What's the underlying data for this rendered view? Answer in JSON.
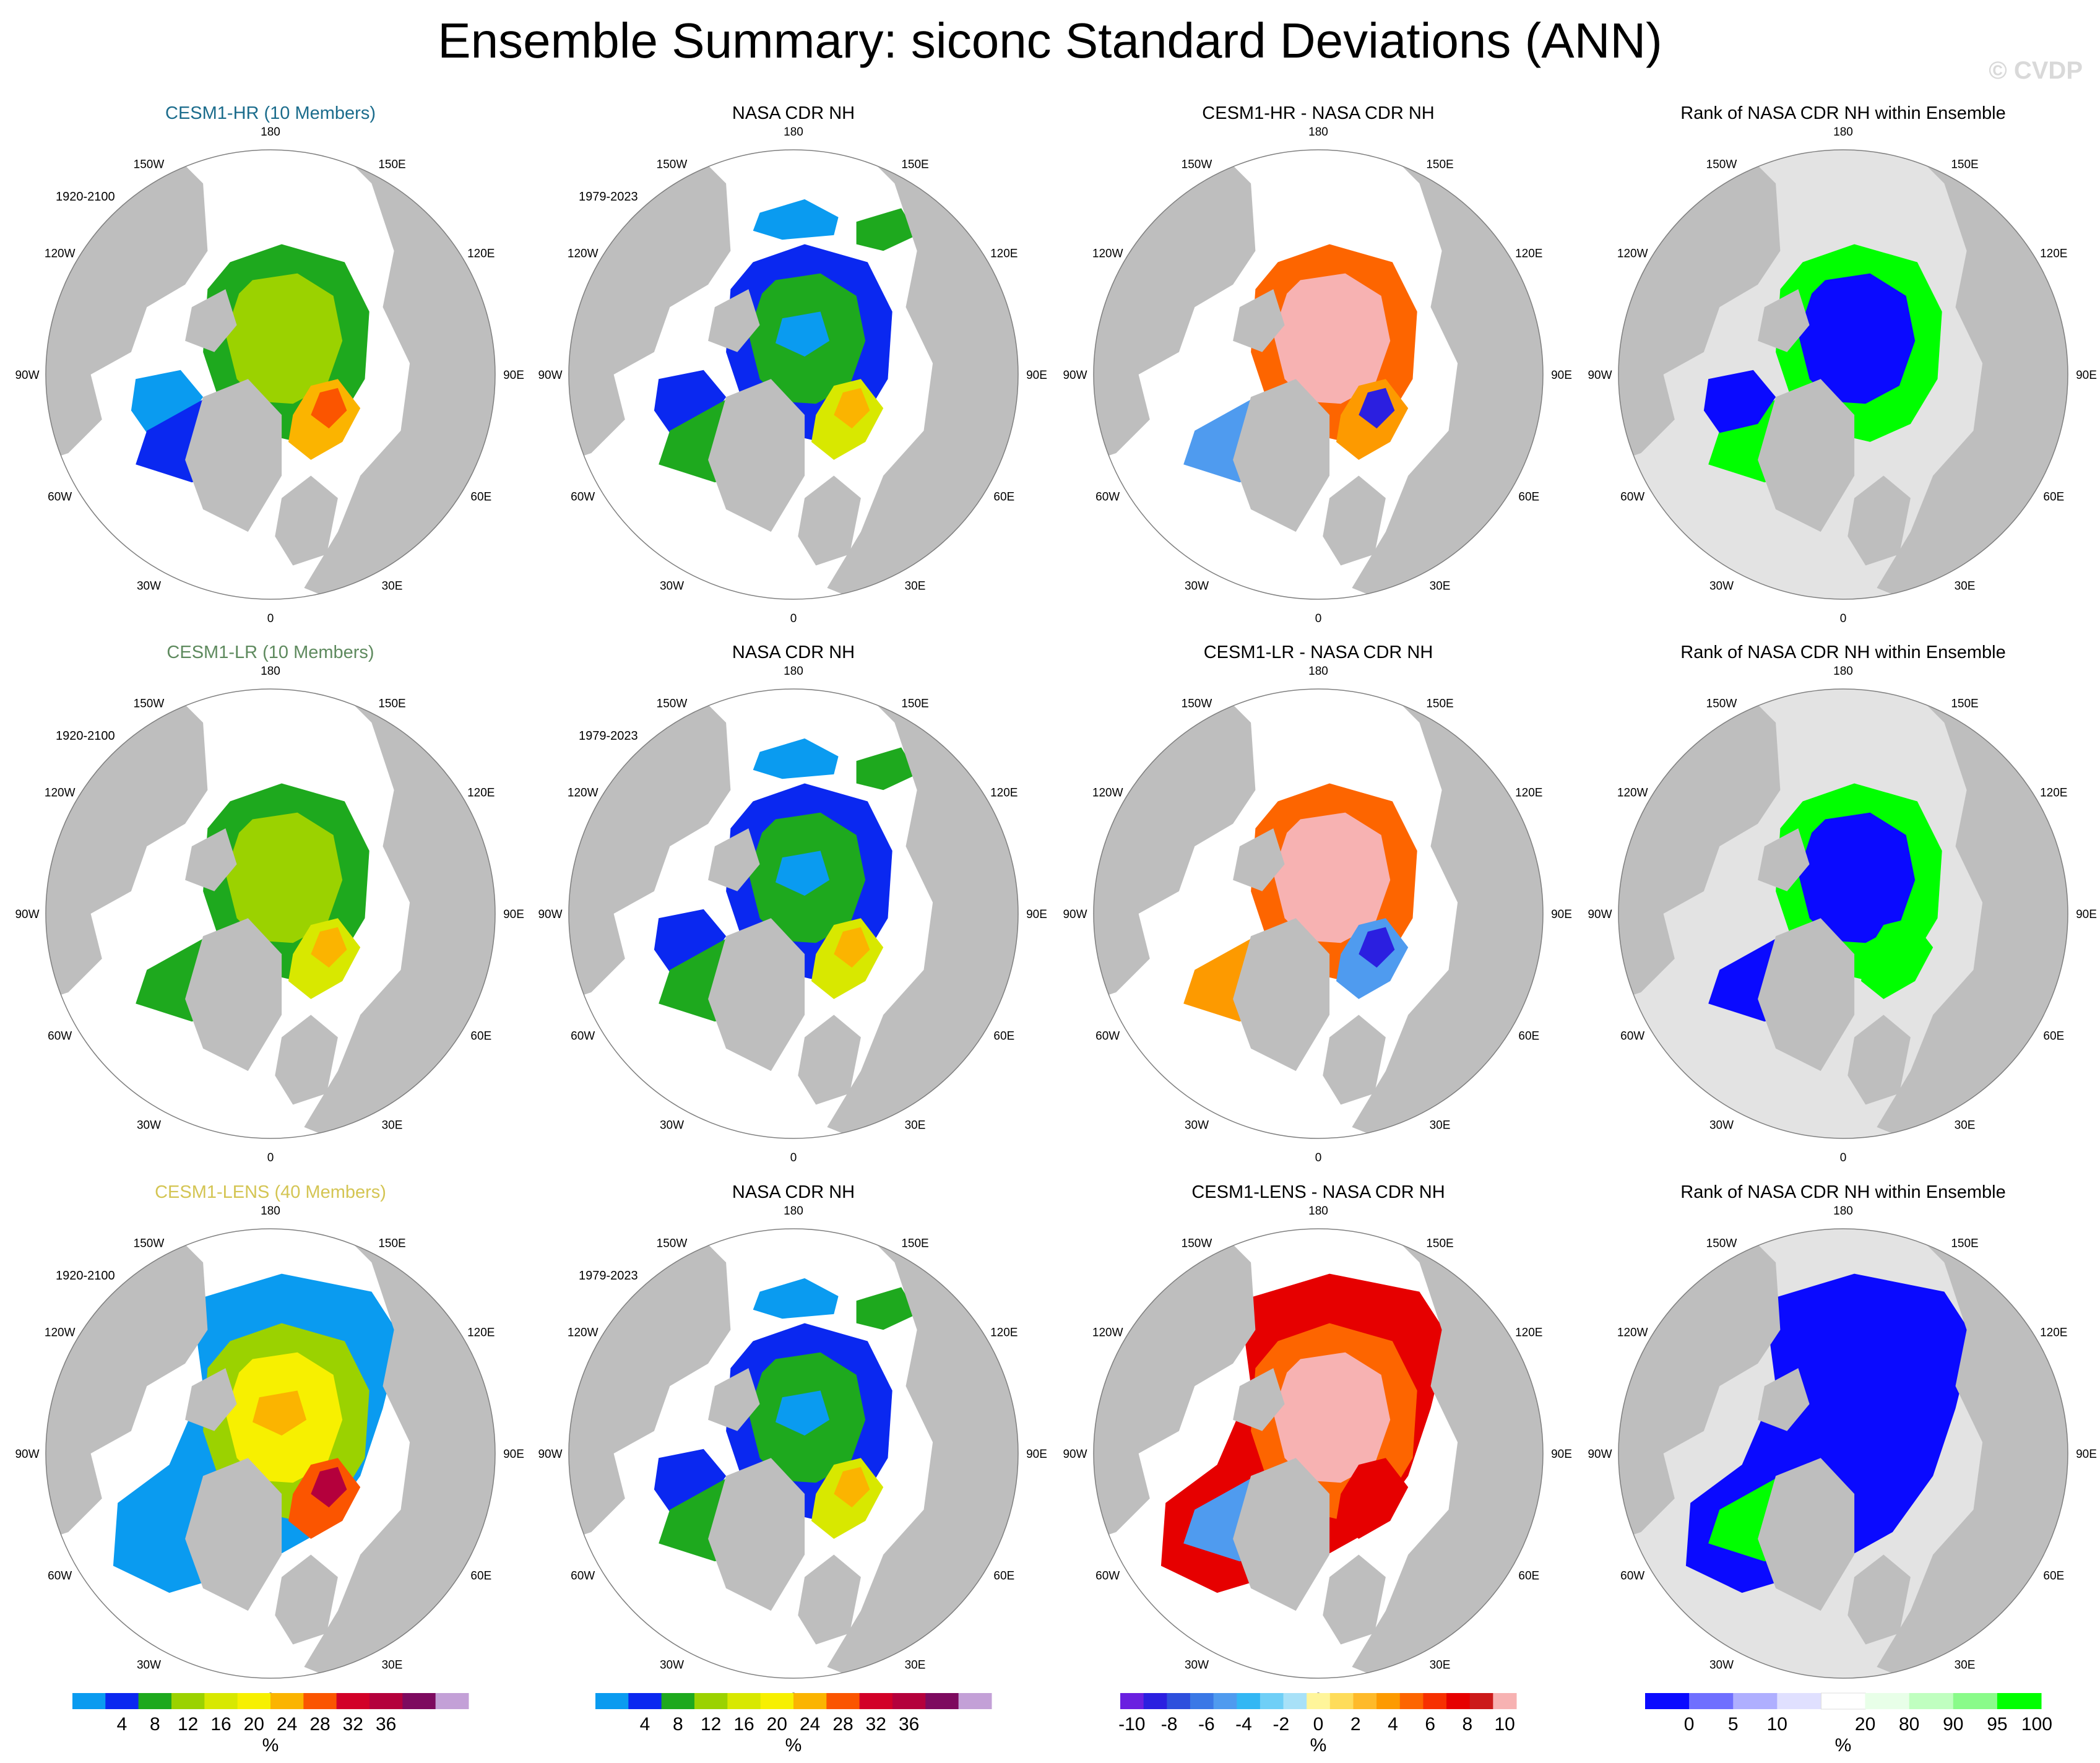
{
  "title": "Ensemble Summary: siconc Standard Deviations (ANN)",
  "watermark": "© CVDP",
  "colors": {
    "ocean": "#ffffff",
    "land": "#bebebe",
    "rank_background": "#e3e3e3",
    "circle_outline": "#7f7f7f",
    "title_hr": "#1b6c8c",
    "title_lr": "#5e8a5e",
    "title_lens": "#d4c553"
  },
  "longitude_labels": [
    "180",
    "150E",
    "120E",
    "90E",
    "60E",
    "30E",
    "0",
    "30W",
    "60W",
    "90W",
    "120W",
    "150W"
  ],
  "rows": [
    {
      "panels": [
        {
          "title": "CESM1-HR (10 Members)",
          "title_color": "#1b6c8c",
          "period": "1920-2100",
          "field": "std_model_hr",
          "scale": "std"
        },
        {
          "title": "NASA CDR NH",
          "title_color": "#000000",
          "period": "1979-2023",
          "field": "std_obs",
          "scale": "std"
        },
        {
          "title": "CESM1-HR - NASA CDR NH",
          "title_color": "#000000",
          "period": "",
          "field": "diff_hr",
          "scale": "diff"
        },
        {
          "title": "Rank of NASA CDR NH within Ensemble",
          "title_color": "#000000",
          "period": "",
          "field": "rank_hr",
          "scale": "rank"
        }
      ]
    },
    {
      "panels": [
        {
          "title": "CESM1-LR (10 Members)",
          "title_color": "#5e8a5e",
          "period": "1920-2100",
          "field": "std_model_lr",
          "scale": "std"
        },
        {
          "title": "NASA CDR NH",
          "title_color": "#000000",
          "period": "1979-2023",
          "field": "std_obs",
          "scale": "std"
        },
        {
          "title": "CESM1-LR - NASA CDR NH",
          "title_color": "#000000",
          "period": "",
          "field": "diff_lr",
          "scale": "diff"
        },
        {
          "title": "Rank of NASA CDR NH within Ensemble",
          "title_color": "#000000",
          "period": "",
          "field": "rank_lr",
          "scale": "rank"
        }
      ]
    },
    {
      "panels": [
        {
          "title": "CESM1-LENS (40 Members)",
          "title_color": "#d4c553",
          "period": "1920-2100",
          "field": "std_model_lens",
          "scale": "std"
        },
        {
          "title": "NASA CDR NH",
          "title_color": "#000000",
          "period": "1979-2023",
          "field": "std_obs",
          "scale": "std"
        },
        {
          "title": "CESM1-LENS - NASA CDR NH",
          "title_color": "#000000",
          "period": "",
          "field": "diff_lens",
          "scale": "diff"
        },
        {
          "title": "Rank of NASA CDR NH within Ensemble",
          "title_color": "#000000",
          "period": "",
          "field": "rank_lens",
          "scale": "rank"
        }
      ]
    }
  ],
  "colorbars": [
    {
      "name": "std",
      "unit": "%",
      "colors": [
        "#0a9bf0",
        "#0a28f0",
        "#1ea91e",
        "#9bd200",
        "#d8e800",
        "#f7f000",
        "#fbb400",
        "#fb5500",
        "#d20028",
        "#b4003c",
        "#7d0a5f",
        "#c3a0d7"
      ],
      "tick_labels": [
        "4",
        "8",
        "12",
        "16",
        "20",
        "24",
        "28",
        "32",
        "36"
      ]
    },
    {
      "name": "std",
      "unit": "%",
      "colors": [
        "#0a9bf0",
        "#0a28f0",
        "#1ea91e",
        "#9bd200",
        "#d8e800",
        "#f7f000",
        "#fbb400",
        "#fb5500",
        "#d20028",
        "#b4003c",
        "#7d0a5f",
        "#c3a0d7"
      ],
      "tick_labels": [
        "4",
        "8",
        "12",
        "16",
        "20",
        "24",
        "28",
        "32",
        "36"
      ]
    },
    {
      "name": "diff",
      "unit": "%",
      "colors": [
        "#6a1fe0",
        "#2b1fe0",
        "#2d4fdd",
        "#3a78e6",
        "#4f9bef",
        "#33b7f4",
        "#6fcff7",
        "#a8e1f8",
        "#fff59a",
        "#fedc5a",
        "#feba2a",
        "#fd9a00",
        "#fd6500",
        "#f73000",
        "#e60000",
        "#cc1a1a",
        "#f7b2b2"
      ],
      "tick_labels": [
        "-10",
        "-8",
        "-6",
        "-4",
        "-2",
        "0",
        "2",
        "4",
        "6",
        "8",
        "10"
      ]
    },
    {
      "name": "rank",
      "unit": "%",
      "colors": [
        "#0a0aff",
        "#6f6fff",
        "#afafff",
        "#e0e0ff",
        "#ffffff",
        "#e8ffe8",
        "#c0ffc0",
        "#8afb8a",
        "#00ff00"
      ],
      "tick_labels": [
        "0",
        "5",
        "10",
        "20",
        "80",
        "90",
        "95",
        "100"
      ]
    }
  ]
}
